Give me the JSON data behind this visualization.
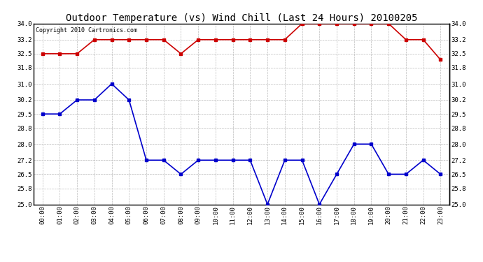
{
  "title": "Outdoor Temperature (vs) Wind Chill (Last 24 Hours) 20100205",
  "copyright": "Copyright 2010 Cartronics.com",
  "hours": [
    "00:00",
    "01:00",
    "02:00",
    "03:00",
    "04:00",
    "05:00",
    "06:00",
    "07:00",
    "08:00",
    "09:00",
    "10:00",
    "11:00",
    "12:00",
    "13:00",
    "14:00",
    "15:00",
    "16:00",
    "17:00",
    "18:00",
    "19:00",
    "20:00",
    "21:00",
    "22:00",
    "23:00"
  ],
  "temp": [
    29.5,
    29.5,
    30.2,
    30.2,
    31.0,
    30.2,
    27.2,
    27.2,
    26.5,
    27.2,
    27.2,
    27.2,
    27.2,
    25.0,
    27.2,
    27.2,
    25.0,
    26.5,
    28.0,
    28.0,
    26.5,
    26.5,
    27.2,
    26.5
  ],
  "wind_chill": [
    32.5,
    32.5,
    32.5,
    33.2,
    33.2,
    33.2,
    33.2,
    33.2,
    32.5,
    33.2,
    33.2,
    33.2,
    33.2,
    33.2,
    33.2,
    34.0,
    34.0,
    34.0,
    34.0,
    34.0,
    34.0,
    33.2,
    33.2,
    32.2
  ],
  "temp_color": "#0000cc",
  "wind_chill_color": "#cc0000",
  "background_color": "#ffffff",
  "grid_color": "#bbbbbb",
  "ylim": [
    25.0,
    34.0
  ],
  "yticks": [
    25.0,
    25.8,
    26.5,
    27.2,
    28.0,
    28.8,
    29.5,
    30.2,
    31.0,
    31.8,
    32.5,
    33.2,
    34.0
  ],
  "title_fontsize": 10,
  "copyright_fontsize": 6,
  "tick_fontsize": 6.5,
  "marker": "s",
  "marker_size": 2.5,
  "linewidth": 1.2
}
